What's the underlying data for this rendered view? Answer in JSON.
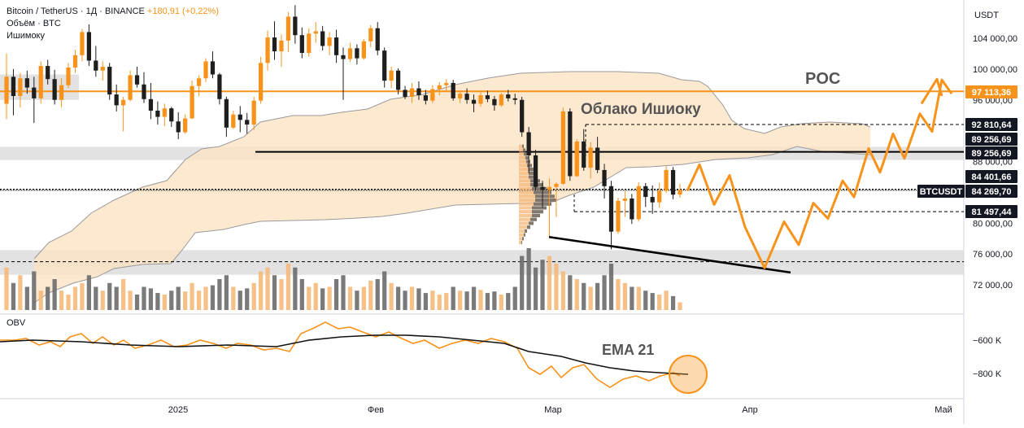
{
  "header": {
    "symbol": "Bitcoin / TetherUS · 1Д · BINANCE",
    "change": "+180,91 (+0,22%)",
    "volume_label": "Объём · BTC",
    "ichimoku_label": "Ишимоку"
  },
  "obv_label": "OBV",
  "price_axis": {
    "unit": "USDT",
    "ticks": [
      "104 000,00",
      "100 000,00",
      "96 000,00",
      "88 000,00",
      "80 000,00",
      "76 000,00",
      "72 000,00"
    ],
    "tick_values": [
      104000,
      100000,
      96000,
      88000,
      80000,
      76000,
      72000
    ]
  },
  "obv_axis": {
    "ticks": [
      "−600 K",
      "−800 K"
    ],
    "tick_values": [
      -600,
      -800
    ]
  },
  "time_axis": {
    "ticks": [
      "2025",
      "Фев",
      "Мар",
      "Апр",
      "Май"
    ]
  },
  "price_labels": [
    {
      "text": "97 113,36",
      "value": 97113.36,
      "style": "orange"
    },
    {
      "text": "92 810,64",
      "value": 92810.64,
      "style": "dark"
    },
    {
      "text": "89 256,69",
      "value": 89256.69,
      "style": "dark"
    },
    {
      "text": "89 256,69",
      "value": 89256.69,
      "style": "dark"
    },
    {
      "text": "84 401,66",
      "value": 84401.66,
      "style": "dark"
    },
    {
      "text": "84 269,70",
      "value": 84269.7,
      "style": "dark"
    },
    {
      "text": "81 497,44",
      "value": 81497.44,
      "style": "dark"
    }
  ],
  "ticker_tag": "BTCUSDT",
  "annotations": {
    "poc": "POC",
    "cloud": "Облако Ишиоку",
    "ema": "EMA 21"
  },
  "colors": {
    "bull": "#f7931a",
    "bear": "#1e1e1e",
    "accent": "#f7931a",
    "cloud_fill": "#fbe3c4",
    "zone": "#d8d8d8",
    "volume_gray": "#6b6b6b",
    "volume_orange": "#f5b97a"
  },
  "chart_data": {
    "type": "candlestick",
    "symbol": "BTCUSDT",
    "interval": "1D",
    "ylim": [
      70500,
      107500
    ],
    "obv_ylim": [
      -870,
      -430
    ],
    "x_ticks": [
      {
        "label": "2025",
        "day": 0
      },
      {
        "label": "Фев",
        "day": 31
      },
      {
        "label": "Мар",
        "day": 59
      },
      {
        "label": "Апр",
        "day": 90
      },
      {
        "label": "Май",
        "day": 120
      }
    ],
    "poc": 97113.36,
    "current_price": 84269.7,
    "levels": [
      92810.64,
      89256.69,
      84401.66,
      84269.7,
      81497.44
    ]
  }
}
